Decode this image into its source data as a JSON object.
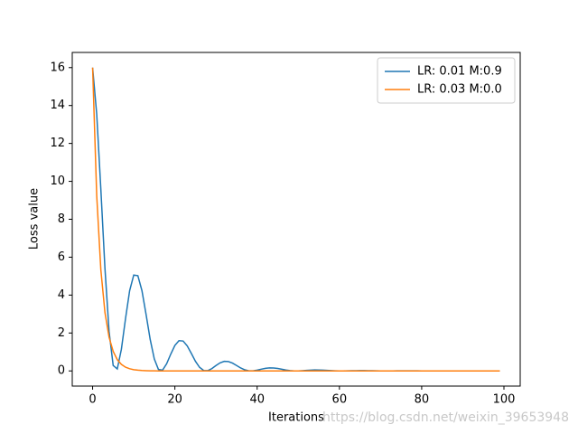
{
  "chart_data": {
    "type": "line",
    "x_label": "Iterations",
    "y_label": "Loss value",
    "watermark": "https://blog.csdn.net/weixin_39653948",
    "x": [
      0,
      1,
      2,
      3,
      4,
      5,
      6,
      7,
      8,
      9,
      10,
      11,
      12,
      13,
      14,
      15,
      16,
      17,
      18,
      19,
      20,
      21,
      22,
      23,
      24,
      25,
      26,
      27,
      28,
      29,
      30,
      31,
      32,
      33,
      34,
      35,
      36,
      37,
      38,
      39,
      40,
      41,
      42,
      43,
      44,
      45,
      46,
      47,
      48,
      49,
      50,
      51,
      52,
      53,
      54,
      55,
      56,
      57,
      58,
      59,
      60,
      61,
      62,
      63,
      64,
      65,
      66,
      67,
      68,
      69,
      70,
      71,
      72,
      73,
      74,
      75,
      76,
      77,
      78,
      79,
      80,
      81,
      82,
      83,
      84,
      85,
      86,
      87,
      88,
      89,
      90,
      91,
      92,
      93,
      94,
      95,
      96,
      97,
      98,
      99
    ],
    "series": [
      {
        "name": "LR: 0.01 M:0.9",
        "color": "#1f77b4",
        "values": [
          16,
          13.54,
          9.595,
          5.408,
          2.087,
          0.288,
          0.105,
          1.15,
          2.756,
          4.229,
          5.056,
          5.024,
          4.227,
          2.973,
          1.659,
          0.628,
          0.08,
          0.039,
          0.379,
          0.887,
          1.346,
          1.597,
          1.577,
          1.319,
          0.921,
          0.509,
          0.189,
          0.022,
          0.015,
          0.125,
          0.285,
          0.428,
          0.504,
          0.495,
          0.411,
          0.285,
          0.156,
          0.057,
          0.006,
          0.005,
          0.041,
          0.092,
          0.136,
          0.159,
          0.155,
          0.129,
          0.09,
          0.049,
          0.018,
          0.002,
          0.002,
          0.013,
          0.029,
          0.043,
          0.05,
          0.049,
          0.041,
          0.028,
          0.015,
          0.006,
          0.001,
          0.001,
          0.004,
          0.009,
          0.013,
          0.016,
          0.015,
          0.013,
          0.009,
          0.005,
          0.002,
          0,
          0,
          0.001,
          0.003,
          0.004,
          0.005,
          0.005,
          0.004,
          0.003,
          0.002,
          0.001,
          0,
          0,
          0,
          0.001,
          0.001,
          0.002,
          0.002,
          0.001,
          0.001,
          0.001,
          0,
          0,
          0,
          0,
          0,
          0,
          0,
          0
        ]
      },
      {
        "name": "LR: 0.03 M:0.0",
        "color": "#ff7f0e",
        "values": [
          16,
          9.24,
          5.34,
          3.08,
          1.78,
          1.03,
          0.594,
          0.343,
          0.198,
          0.114,
          0.066,
          0.038,
          0.022,
          0.013,
          0.007,
          0.004,
          0.002,
          0.001,
          0.001,
          0,
          0,
          0,
          0,
          0,
          0,
          0,
          0,
          0,
          0,
          0,
          0,
          0,
          0,
          0,
          0,
          0,
          0,
          0,
          0,
          0,
          0,
          0,
          0,
          0,
          0,
          0,
          0,
          0,
          0,
          0,
          0,
          0,
          0,
          0,
          0,
          0,
          0,
          0,
          0,
          0,
          0,
          0,
          0,
          0,
          0,
          0,
          0,
          0,
          0,
          0,
          0,
          0,
          0,
          0,
          0,
          0,
          0,
          0,
          0,
          0,
          0,
          0,
          0,
          0,
          0,
          0,
          0,
          0,
          0,
          0,
          0,
          0,
          0,
          0,
          0,
          0,
          0,
          0,
          0,
          0
        ]
      }
    ],
    "xlim": [
      -4.95,
      103.95
    ],
    "xticks": [
      0,
      20,
      40,
      60,
      80,
      100
    ],
    "ylim": [
      -0.8,
      16.8
    ],
    "yticks": [
      0,
      2,
      4,
      6,
      8,
      10,
      12,
      14,
      16
    ],
    "legend": "upper right"
  }
}
